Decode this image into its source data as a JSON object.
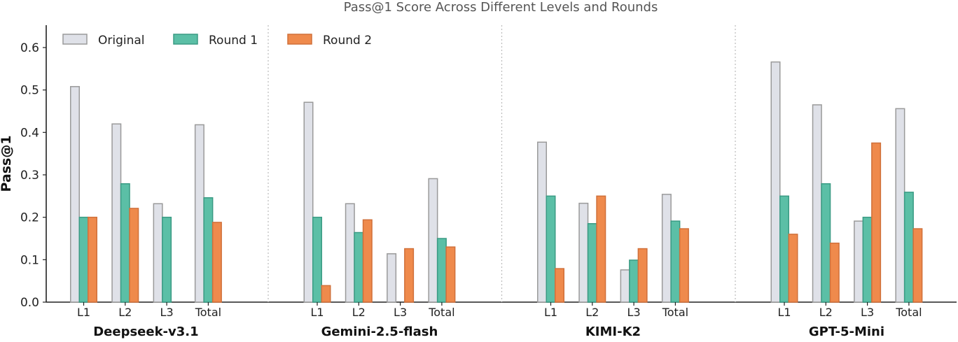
{
  "chart_data": {
    "type": "bar",
    "title": "Pass@1 Score Across Different Levels and Rounds",
    "ylabel": "Pass@1",
    "ylim": [
      0,
      0.65
    ],
    "yticks": [
      "0.0",
      "0.1",
      "0.2",
      "0.3",
      "0.4",
      "0.5",
      "0.6"
    ],
    "grid": false,
    "legend_position": "top-left",
    "groups": [
      "Deepseek-v3.1",
      "Gemini-2.5-flash",
      "KIMI-K2",
      "GPT-5-Mini"
    ],
    "categories": [
      "L1",
      "L2",
      "L3",
      "Total"
    ],
    "series": [
      {
        "name": "Original",
        "color": "#dfe1e8",
        "edge": "#9a9a9a",
        "values": [
          [
            0.508,
            0.42,
            0.232,
            0.418
          ],
          [
            0.471,
            0.232,
            0.114,
            0.291
          ],
          [
            0.377,
            0.233,
            0.076,
            0.254
          ],
          [
            0.566,
            0.465,
            0.191,
            0.456
          ]
        ]
      },
      {
        "name": "Round 1",
        "color": "#5bbfa6",
        "edge": "#3b9b84",
        "values": [
          [
            0.2,
            0.279,
            0.2,
            0.246
          ],
          [
            0.2,
            0.164,
            0.0,
            0.15
          ],
          [
            0.25,
            0.185,
            0.099,
            0.191
          ],
          [
            0.25,
            0.279,
            0.2,
            0.259
          ]
        ]
      },
      {
        "name": "Round 2",
        "color": "#ef8a4c",
        "edge": "#d0703a",
        "values": [
          [
            0.2,
            0.221,
            0.0,
            0.188
          ],
          [
            0.039,
            0.194,
            0.126,
            0.13
          ],
          [
            0.079,
            0.25,
            0.126,
            0.173
          ],
          [
            0.16,
            0.139,
            0.375,
            0.173
          ]
        ]
      }
    ]
  }
}
